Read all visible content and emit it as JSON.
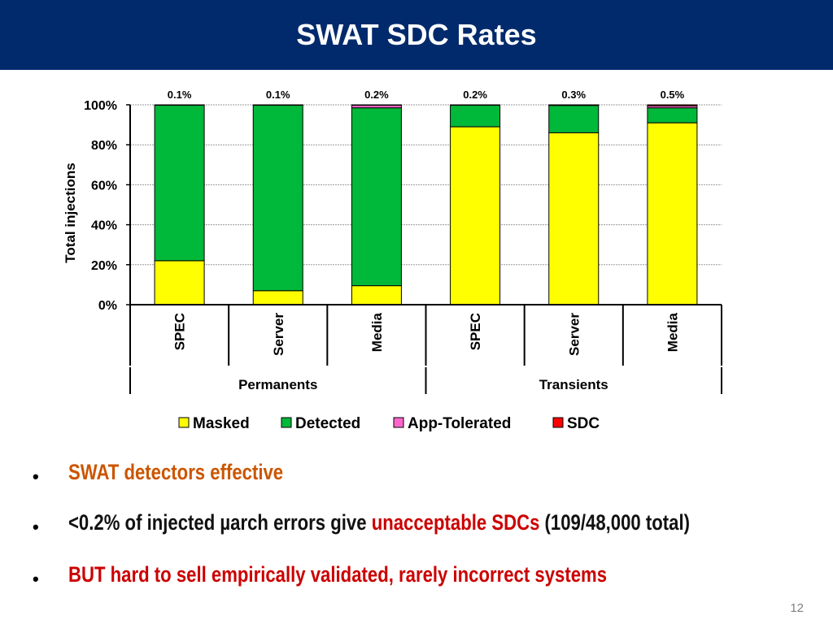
{
  "slide": {
    "title": "SWAT SDC Rates",
    "page_number": "12"
  },
  "chart_data": {
    "type": "bar",
    "stacked": true,
    "categories": [
      "SPEC",
      "Server",
      "Media",
      "SPEC",
      "Server",
      "Media"
    ],
    "groups": [
      {
        "label": "Permanents",
        "categories": [
          0,
          1,
          2
        ]
      },
      {
        "label": "Transients",
        "categories": [
          3,
          4,
          5
        ]
      }
    ],
    "series": [
      {
        "name": "Masked",
        "color": "#ffff00",
        "values": [
          22,
          7,
          9.5,
          89,
          86,
          91
        ]
      },
      {
        "name": "Detected",
        "color": "#00b839",
        "values": [
          77.9,
          92.9,
          89,
          10.8,
          13.7,
          7.5
        ]
      },
      {
        "name": "App-Tolerated",
        "color": "#ff66cc",
        "values": [
          0,
          0,
          1.3,
          0,
          0,
          1
        ]
      },
      {
        "name": "SDC",
        "color": "#ff0000",
        "values": [
          0.1,
          0.1,
          0.2,
          0.2,
          0.3,
          0.5
        ]
      }
    ],
    "data_labels": [
      "0.1%",
      "0.1%",
      "0.2%",
      "0.2%",
      "0.3%",
      "0.5%"
    ],
    "y_ticks": [
      "0%",
      "20%",
      "40%",
      "60%",
      "80%",
      "100%"
    ],
    "ylabel": "Total injections",
    "ylim": [
      0,
      100
    ],
    "grid": true,
    "legend_position": "bottom"
  },
  "bullets": [
    {
      "parts": [
        {
          "text": "SWAT detectors effective",
          "style": "orange"
        }
      ]
    },
    {
      "parts": [
        {
          "text": "<0.2% of injected µarch errors give ",
          "style": "black"
        },
        {
          "text": "unacceptable SDCs",
          "style": "red"
        },
        {
          "text": " (109/48,000 total)",
          "style": "black"
        }
      ]
    },
    {
      "parts": [
        {
          "text": "BUT hard to sell empirically validated, rarely incorrect systems",
          "style": "red"
        }
      ]
    }
  ],
  "bullet_marker": "•"
}
